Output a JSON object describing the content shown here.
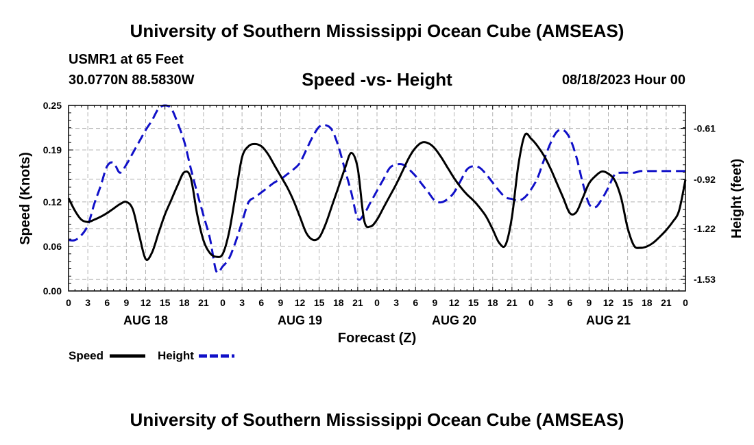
{
  "header": {
    "title": "University of Southern Mississippi Ocean Cube (AMSEAS)",
    "station": "USMR1 at 65 Feet",
    "coords": "30.0770N  88.5830W",
    "chart_title": "Speed -vs- Height",
    "run_time": "08/18/2023 Hour 00"
  },
  "footer": {
    "title": "University of Southern Mississippi Ocean Cube (AMSEAS)"
  },
  "colors": {
    "speed": "#000000",
    "height": "#1010c8",
    "grid": "#b4b4b4"
  },
  "chart_data": {
    "type": "line",
    "title": "Speed -vs- Height",
    "xlabel": "Forecast (Z)",
    "ylabel": "Speed (Knots)",
    "y2label": "Height (feet)",
    "xlim": [
      0,
      96
    ],
    "ylim": [
      0,
      0.25
    ],
    "y2lim": [
      -1.6,
      -0.47
    ],
    "x_tick_hours": [
      0,
      3,
      6,
      9,
      12,
      15,
      18,
      21,
      24,
      27,
      30,
      33,
      36,
      39,
      42,
      45,
      48,
      51,
      54,
      57,
      60,
      63,
      66,
      69,
      72,
      75,
      78,
      81,
      84,
      87,
      90,
      93,
      96
    ],
    "x_tick_labels": [
      "0",
      "3",
      "6",
      "9",
      "12",
      "15",
      "18",
      "21",
      "0",
      "3",
      "6",
      "9",
      "12",
      "15",
      "18",
      "21",
      "0",
      "3",
      "6",
      "9",
      "12",
      "15",
      "18",
      "21",
      "0",
      "3",
      "6",
      "9",
      "12",
      "15",
      "18",
      "21",
      "0"
    ],
    "day_labels": [
      {
        "hour": 12,
        "label": "AUG 18"
      },
      {
        "hour": 36,
        "label": "AUG 19"
      },
      {
        "hour": 60,
        "label": "AUG 20"
      },
      {
        "hour": 84,
        "label": "AUG 21"
      }
    ],
    "y_ticks": [
      0.0,
      0.06,
      0.12,
      0.19,
      0.25
    ],
    "y_tick_labels": [
      "0.00",
      "0.06",
      "0.12",
      "0.19",
      "0.25"
    ],
    "y2_ticks": [
      -1.53,
      -1.22,
      -0.92,
      -0.61
    ],
    "y2_tick_labels": [
      "-1.53",
      "-1.22",
      "-0.92",
      "-0.61"
    ],
    "series": [
      {
        "name": "Speed",
        "axis": "left",
        "style": "solid",
        "x": [
          0,
          1,
          2,
          3,
          4,
          5,
          6,
          7,
          8,
          9,
          10,
          11,
          12,
          13,
          14,
          15,
          16,
          17,
          18,
          19,
          20,
          21,
          22,
          23,
          24,
          25,
          26,
          27,
          28,
          29,
          30,
          31,
          32,
          33,
          34,
          35,
          36,
          37,
          38,
          39,
          40,
          41,
          42,
          43,
          44,
          45,
          46,
          47,
          48,
          49,
          50,
          51,
          52,
          53,
          54,
          55,
          56,
          57,
          58,
          59,
          60,
          61,
          62,
          63,
          64,
          65,
          66,
          67,
          68,
          69,
          70,
          71,
          72,
          73,
          74,
          75,
          76,
          77,
          78,
          79,
          80,
          81,
          82,
          83,
          84,
          85,
          86,
          87,
          88,
          89,
          90,
          91,
          92,
          93,
          94,
          95,
          96
        ],
        "values": [
          0.125,
          0.108,
          0.096,
          0.093,
          0.096,
          0.1,
          0.105,
          0.111,
          0.117,
          0.12,
          0.11,
          0.075,
          0.043,
          0.052,
          0.078,
          0.103,
          0.123,
          0.143,
          0.16,
          0.153,
          0.104,
          0.068,
          0.051,
          0.046,
          0.05,
          0.08,
          0.13,
          0.18,
          0.195,
          0.198,
          0.195,
          0.185,
          0.17,
          0.155,
          0.14,
          0.122,
          0.1,
          0.078,
          0.069,
          0.072,
          0.09,
          0.115,
          0.14,
          0.165,
          0.186,
          0.165,
          0.095,
          0.087,
          0.096,
          0.112,
          0.128,
          0.144,
          0.162,
          0.18,
          0.193,
          0.2,
          0.199,
          0.192,
          0.18,
          0.166,
          0.152,
          0.14,
          0.13,
          0.122,
          0.112,
          0.1,
          0.083,
          0.065,
          0.062,
          0.1,
          0.17,
          0.21,
          0.205,
          0.195,
          0.182,
          0.165,
          0.145,
          0.125,
          0.105,
          0.106,
          0.125,
          0.145,
          0.155,
          0.161,
          0.158,
          0.149,
          0.125,
          0.085,
          0.061,
          0.058,
          0.06,
          0.065,
          0.073,
          0.082,
          0.093,
          0.108,
          0.15
        ]
      },
      {
        "name": "Height",
        "axis": "right",
        "style": "dashed",
        "x": [
          0,
          1,
          2,
          3,
          4,
          5,
          6,
          7,
          8,
          9,
          10,
          11,
          12,
          13,
          14,
          15,
          16,
          17,
          18,
          19,
          20,
          21,
          22,
          23,
          24,
          25,
          26,
          27,
          28,
          29,
          30,
          31,
          32,
          33,
          34,
          35,
          36,
          37,
          38,
          39,
          40,
          41,
          42,
          43,
          44,
          45,
          46,
          47,
          48,
          49,
          50,
          51,
          52,
          53,
          54,
          55,
          56,
          57,
          58,
          59,
          60,
          61,
          62,
          63,
          64,
          65,
          66,
          67,
          68,
          69,
          70,
          71,
          72,
          73,
          74,
          75,
          76,
          77,
          78,
          79,
          80,
          81,
          82,
          83,
          84,
          85,
          86,
          87,
          88,
          89,
          90,
          91,
          92,
          93,
          94,
          95,
          96
        ],
        "values": [
          -1.29,
          -1.29,
          -1.26,
          -1.2,
          -1.07,
          -0.96,
          -0.84,
          -0.82,
          -0.88,
          -0.83,
          -0.76,
          -0.69,
          -0.62,
          -0.56,
          -0.49,
          -0.47,
          -0.49,
          -0.58,
          -0.69,
          -0.85,
          -1.0,
          -1.14,
          -1.28,
          -1.48,
          -1.45,
          -1.4,
          -1.3,
          -1.18,
          -1.06,
          -1.03,
          -1.0,
          -0.97,
          -0.94,
          -0.92,
          -0.89,
          -0.86,
          -0.82,
          -0.74,
          -0.66,
          -0.6,
          -0.59,
          -0.62,
          -0.72,
          -0.86,
          -1.0,
          -1.16,
          -1.13,
          -1.06,
          -0.99,
          -0.92,
          -0.85,
          -0.83,
          -0.83,
          -0.86,
          -0.9,
          -0.95,
          -1.0,
          -1.05,
          -1.06,
          -1.04,
          -1.0,
          -0.93,
          -0.86,
          -0.84,
          -0.85,
          -0.89,
          -0.94,
          -0.99,
          -1.03,
          -1.04,
          -1.05,
          -1.03,
          -0.98,
          -0.91,
          -0.8,
          -0.7,
          -0.63,
          -0.62,
          -0.67,
          -0.78,
          -0.94,
          -1.07,
          -1.09,
          -1.04,
          -0.97,
          -0.89,
          -0.88,
          -0.88,
          -0.88,
          -0.87,
          -0.87,
          -0.87,
          -0.87,
          -0.87,
          -0.87,
          -0.87,
          -0.87
        ]
      }
    ],
    "legend": {
      "placement": "bottom-left",
      "entries": [
        "Speed",
        "Height"
      ]
    }
  }
}
